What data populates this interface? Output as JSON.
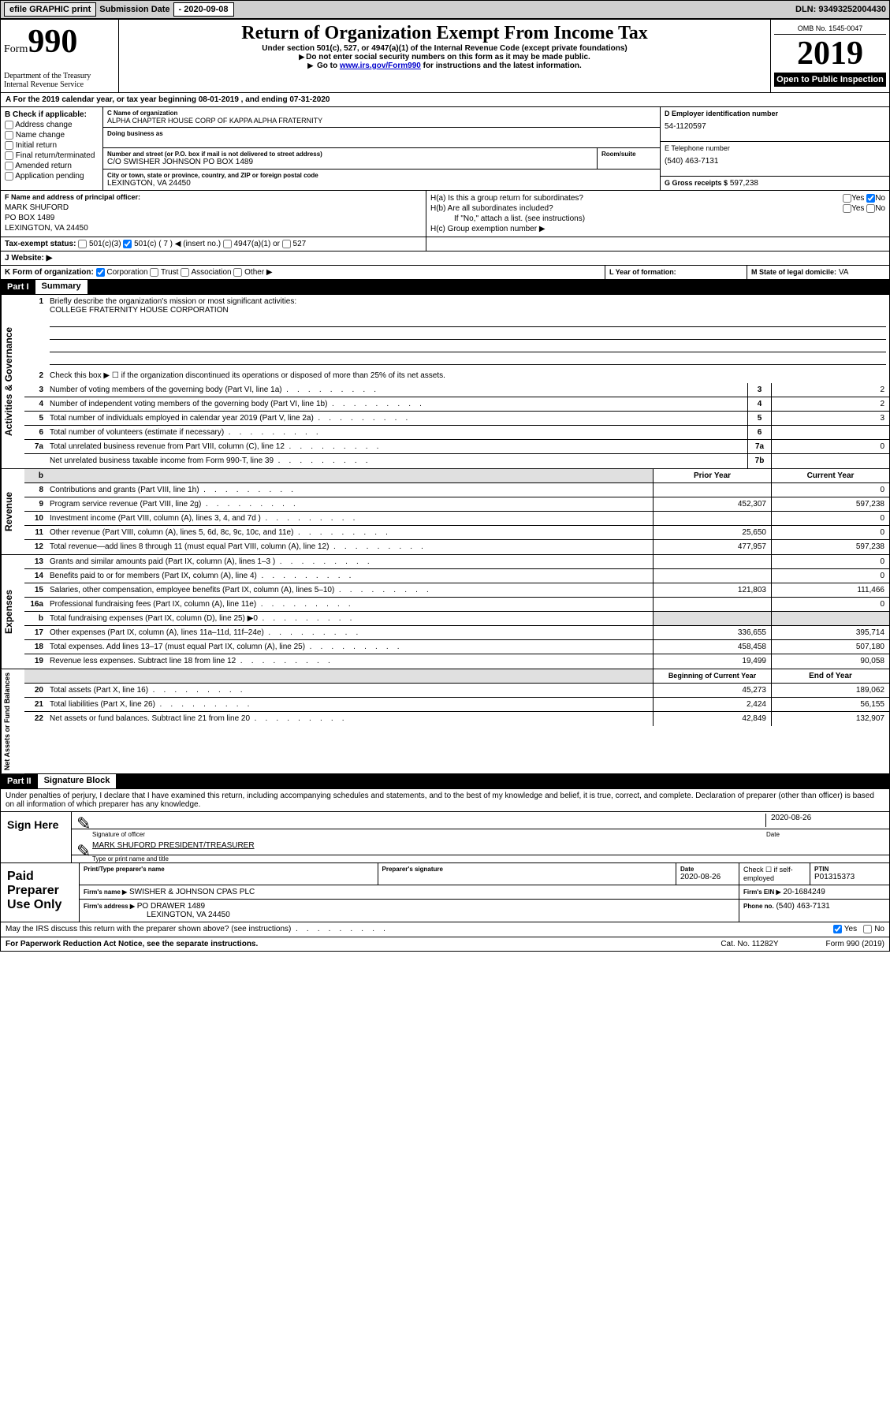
{
  "topbar": {
    "efile": "efile GRAPHIC print",
    "sub_lbl": "Submission Date",
    "sub_date": "- 2020-09-08",
    "dln_lbl": "DLN:",
    "dln": "93493252004430"
  },
  "header": {
    "form_word": "Form",
    "form_num": "990",
    "dept": "Department of the Treasury\nInternal Revenue Service",
    "title": "Return of Organization Exempt From Income Tax",
    "sub1": "Under section 501(c), 527, or 4947(a)(1) of the Internal Revenue Code (except private foundations)",
    "sub2": "Do not enter social security numbers on this form as it may be made public.",
    "sub3_pre": "Go to ",
    "sub3_link": "www.irs.gov/Form990",
    "sub3_post": " for instructions and the latest information.",
    "omb": "OMB No. 1545-0047",
    "year": "2019",
    "open": "Open to Public Inspection"
  },
  "section_a": {
    "text": "For the 2019 calendar year, or tax year beginning 08-01-2019    , and ending 07-31-2020",
    "prefix": "A"
  },
  "box_b": {
    "label": "B Check if applicable:",
    "items": [
      "Address change",
      "Name change",
      "Initial return",
      "Final return/terminated",
      "Amended return",
      "Application pending"
    ]
  },
  "box_c": {
    "name_lbl": "C Name of organization",
    "name": "ALPHA CHAPTER HOUSE CORP OF KAPPA ALPHA FRATERNITY",
    "dba_lbl": "Doing business as",
    "addr_lbl": "Number and street (or P.O. box if mail is not delivered to street address)",
    "addr": "C/O SWISHER JOHNSON PO BOX 1489",
    "room_lbl": "Room/suite",
    "city_lbl": "City or town, state or province, country, and ZIP or foreign postal code",
    "city": "LEXINGTON, VA  24450"
  },
  "box_d": {
    "lbl": "D Employer identification number",
    "val": "54-1120597"
  },
  "box_e": {
    "lbl": "E Telephone number",
    "val": "(540) 463-7131"
  },
  "box_g": {
    "lbl": "G Gross receipts $",
    "val": "597,238"
  },
  "box_f": {
    "lbl": "F  Name and address of principal officer:",
    "name": "MARK SHUFORD",
    "addr1": "PO BOX 1489",
    "addr2": "LEXINGTON, VA  24450"
  },
  "box_h": {
    "ha": "H(a)  Is this a group return for subordinates?",
    "hb": "H(b)  Are all subordinates included?",
    "hb_note": "If \"No,\" attach a list. (see instructions)",
    "hc": "H(c)  Group exemption number ▶",
    "yes": "Yes",
    "no": "No"
  },
  "box_i": {
    "lbl": "Tax-exempt status:",
    "opts": [
      "501(c)(3)",
      "501(c) ( 7 ) ◀ (insert no.)",
      "4947(a)(1) or",
      "527"
    ],
    "checked_idx": 1
  },
  "box_j": {
    "lbl": "J    Website: ▶"
  },
  "box_k": {
    "lbl": "K Form of organization:",
    "opts": [
      "Corporation",
      "Trust",
      "Association",
      "Other ▶"
    ],
    "checked_idx": 0
  },
  "box_l": {
    "lbl": "L Year of formation:"
  },
  "box_m": {
    "lbl": "M State of legal domicile:",
    "val": "VA"
  },
  "part1": {
    "num": "Part I",
    "title": "Summary"
  },
  "summary": {
    "q1": "Briefly describe the organization's mission or most significant activities:",
    "q1_ans": "COLLEGE FRATERNITY HOUSE CORPORATION",
    "q2": "Check this box ▶ ☐  if the organization discontinued its operations or disposed of more than 25% of its net assets.",
    "rows": [
      {
        "n": "3",
        "t": "Number of voting members of the governing body (Part VI, line 1a)",
        "b": "3",
        "v": "2"
      },
      {
        "n": "4",
        "t": "Number of independent voting members of the governing body (Part VI, line 1b)",
        "b": "4",
        "v": "2"
      },
      {
        "n": "5",
        "t": "Total number of individuals employed in calendar year 2019 (Part V, line 2a)",
        "b": "5",
        "v": "3"
      },
      {
        "n": "6",
        "t": "Total number of volunteers (estimate if necessary)",
        "b": "6",
        "v": ""
      },
      {
        "n": "7a",
        "t": "Total unrelated business revenue from Part VIII, column (C), line 12",
        "b": "7a",
        "v": "0"
      },
      {
        "n": "",
        "t": "Net unrelated business taxable income from Form 990-T, line 39",
        "b": "7b",
        "v": ""
      }
    ],
    "col_hdr_prior": "Prior Year",
    "col_hdr_curr": "Current Year",
    "revenue": [
      {
        "n": "8",
        "t": "Contributions and grants (Part VIII, line 1h)",
        "p": "",
        "c": "0"
      },
      {
        "n": "9",
        "t": "Program service revenue (Part VIII, line 2g)",
        "p": "452,307",
        "c": "597,238"
      },
      {
        "n": "10",
        "t": "Investment income (Part VIII, column (A), lines 3, 4, and 7d )",
        "p": "",
        "c": "0"
      },
      {
        "n": "11",
        "t": "Other revenue (Part VIII, column (A), lines 5, 6d, 8c, 9c, 10c, and 11e)",
        "p": "25,650",
        "c": "0"
      },
      {
        "n": "12",
        "t": "Total revenue—add lines 8 through 11 (must equal Part VIII, column (A), line 12)",
        "p": "477,957",
        "c": "597,238"
      }
    ],
    "expenses": [
      {
        "n": "13",
        "t": "Grants and similar amounts paid (Part IX, column (A), lines 1–3 )",
        "p": "",
        "c": "0"
      },
      {
        "n": "14",
        "t": "Benefits paid to or for members (Part IX, column (A), line 4)",
        "p": "",
        "c": "0"
      },
      {
        "n": "15",
        "t": "Salaries, other compensation, employee benefits (Part IX, column (A), lines 5–10)",
        "p": "121,803",
        "c": "111,466"
      },
      {
        "n": "16a",
        "t": "Professional fundraising fees (Part IX, column (A), line 11e)",
        "p": "",
        "c": "0"
      },
      {
        "n": "b",
        "t": "Total fundraising expenses (Part IX, column (D), line 25) ▶0",
        "p": null,
        "c": null
      },
      {
        "n": "17",
        "t": "Other expenses (Part IX, column (A), lines 11a–11d, 11f–24e)",
        "p": "336,655",
        "c": "395,714"
      },
      {
        "n": "18",
        "t": "Total expenses. Add lines 13–17 (must equal Part IX, column (A), line 25)",
        "p": "458,458",
        "c": "507,180"
      },
      {
        "n": "19",
        "t": "Revenue less expenses. Subtract line 18 from line 12",
        "p": "19,499",
        "c": "90,058"
      }
    ],
    "col_hdr_beg": "Beginning of Current Year",
    "col_hdr_end": "End of Year",
    "netassets": [
      {
        "n": "20",
        "t": "Total assets (Part X, line 16)",
        "p": "45,273",
        "c": "189,062"
      },
      {
        "n": "21",
        "t": "Total liabilities (Part X, line 26)",
        "p": "2,424",
        "c": "56,155"
      },
      {
        "n": "22",
        "t": "Net assets or fund balances. Subtract line 21 from line 20",
        "p": "42,849",
        "c": "132,907"
      }
    ],
    "side_gov": "Activities & Governance",
    "side_rev": "Revenue",
    "side_exp": "Expenses",
    "side_net": "Net Assets or Fund Balances"
  },
  "part2": {
    "num": "Part II",
    "title": "Signature Block"
  },
  "perjury": "Under penalties of perjury, I declare that I have examined this return, including accompanying schedules and statements, and to the best of my knowledge and belief, it is true, correct, and complete. Declaration of preparer (other than officer) is based on all information of which preparer has any knowledge.",
  "sign": {
    "here": "Sign Here",
    "sig_lbl": "Signature of officer",
    "date_lbl": "Date",
    "date": "2020-08-26",
    "name": "MARK SHUFORD  PRESIDENT/TREASURER",
    "name_lbl": "Type or print name and title"
  },
  "paid": {
    "title": "Paid Preparer Use Only",
    "r1": {
      "c1": "Print/Type preparer's name",
      "c2": "Preparer's signature",
      "c3_lbl": "Date",
      "c3": "2020-08-26",
      "c4": "Check ☐ if self-employed",
      "c5_lbl": "PTIN",
      "c5": "P01315373"
    },
    "r2": {
      "lbl": "Firm's name      ▶",
      "val": "SWISHER & JOHNSON CPAS PLC",
      "ein_lbl": "Firm's EIN ▶",
      "ein": "20-1684249"
    },
    "r3": {
      "lbl": "Firm's address ▶",
      "val": "PO DRAWER 1489",
      "city": "LEXINGTON, VA  24450",
      "ph_lbl": "Phone no.",
      "ph": "(540) 463-7131"
    }
  },
  "discuss": {
    "q": "May the IRS discuss this return with the preparer shown above? (see instructions)",
    "yes": "Yes",
    "no": "No"
  },
  "footer": {
    "left": "For Paperwork Reduction Act Notice, see the separate instructions.",
    "mid": "Cat. No. 11282Y",
    "right": "Form 990 (2019)"
  },
  "colors": {
    "topbar_bg": "#cfcfcf",
    "black": "#000000",
    "link": "#0000cc"
  }
}
